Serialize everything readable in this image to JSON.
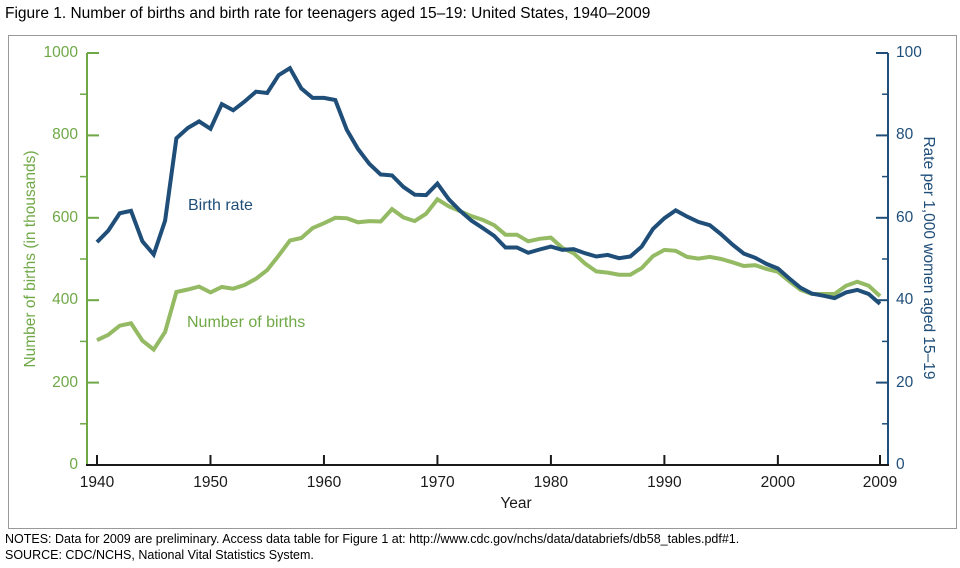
{
  "title": "Figure 1. Number of births and birth rate for teenagers aged 15–19: United States, 1940–2009",
  "notes": "NOTES: Data for 2009 are preliminary. Access data table for Figure 1 at: http://www.cdc.gov/nchs/data/databriefs/db58_tables.pdf#1.",
  "source": "SOURCE: CDC/NCHS, National Vital Statistics System.",
  "colors": {
    "births_line_green": "#94ba64",
    "green_axis_text": "#6fa846",
    "rate_blue": "#1f4e79",
    "axis_black": "#1a1a1a",
    "frame_gray": "#999999"
  },
  "chart_data": {
    "type": "line",
    "title": "Number of births and birth rate for teenagers aged 15–19: United States, 1940–2009",
    "xlabel": "Year",
    "ylabel_left": "Number of births (in thousands)",
    "ylabel_right": "Rate per 1,000 women aged 15–19",
    "x_range": [
      1940,
      2009
    ],
    "y_left_range": [
      0,
      1000
    ],
    "y_right_range": [
      0,
      100
    ],
    "x_ticks": [
      1940,
      1950,
      1960,
      1970,
      1980,
      1990,
      2000,
      2009
    ],
    "y_left_ticks": [
      0,
      200,
      400,
      600,
      800,
      1000
    ],
    "y_right_ticks": [
      0,
      20,
      40,
      60,
      80,
      100
    ],
    "grid": false,
    "legend": "inline-labels",
    "x": [
      1940,
      1941,
      1942,
      1943,
      1944,
      1945,
      1946,
      1947,
      1948,
      1949,
      1950,
      1951,
      1952,
      1953,
      1954,
      1955,
      1956,
      1957,
      1958,
      1959,
      1960,
      1961,
      1962,
      1963,
      1964,
      1965,
      1966,
      1967,
      1968,
      1969,
      1970,
      1971,
      1972,
      1973,
      1974,
      1975,
      1976,
      1977,
      1978,
      1979,
      1980,
      1981,
      1982,
      1983,
      1984,
      1985,
      1986,
      1987,
      1988,
      1989,
      1990,
      1991,
      1992,
      1993,
      1994,
      1995,
      1996,
      1997,
      1998,
      1999,
      2000,
      2001,
      2002,
      2003,
      2004,
      2005,
      2006,
      2007,
      2008,
      2009
    ],
    "series": [
      {
        "name": "Number of births",
        "label": "Number of births",
        "axis": "left",
        "units": "thousands",
        "color": "#94ba64",
        "values": [
          303,
          316,
          338,
          344,
          302,
          280,
          323,
          420,
          426,
          433,
          419,
          432,
          428,
          437,
          452,
          473,
          508,
          545,
          551,
          575,
          587,
          600,
          599,
          589,
          592,
          591,
          621,
          601,
          592,
          610,
          645,
          628,
          616,
          604,
          595,
          582,
          559,
          559,
          543,
          549,
          552,
          527,
          514,
          489,
          470,
          467,
          462,
          462,
          478,
          507,
          522,
          520,
          505,
          501,
          505,
          500,
          492,
          483,
          485,
          476,
          469,
          446,
          425,
          415,
          415,
          415,
          435,
          445,
          435,
          410
        ]
      },
      {
        "name": "Birth rate",
        "label": "Birth rate",
        "axis": "right",
        "units": "per 1,000 women aged 15-19",
        "color": "#1f4e79",
        "values": [
          54.1,
          56.9,
          61.1,
          61.7,
          54.3,
          51.1,
          59.3,
          79.3,
          81.8,
          83.4,
          81.6,
          87.6,
          86.1,
          88.2,
          90.6,
          90.3,
          94.6,
          96.3,
          91.4,
          89.1,
          89.1,
          88.6,
          81.4,
          76.7,
          73.1,
          70.5,
          70.3,
          67.5,
          65.6,
          65.5,
          68.3,
          64.5,
          61.7,
          59.3,
          57.5,
          55.6,
          52.8,
          52.8,
          51.5,
          52.3,
          53.0,
          52.2,
          52.4,
          51.4,
          50.6,
          51.0,
          50.2,
          50.6,
          53.0,
          57.3,
          59.9,
          61.8,
          60.3,
          59.0,
          58.2,
          56.0,
          53.5,
          51.3,
          50.3,
          48.8,
          47.7,
          45.3,
          43.0,
          41.6,
          41.1,
          40.5,
          41.9,
          42.5,
          41.5,
          39.1
        ]
      }
    ]
  }
}
